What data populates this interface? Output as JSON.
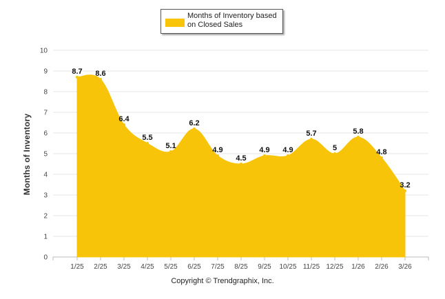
{
  "chart_data": {
    "type": "area",
    "title": "",
    "ylabel": "Months of Inventory",
    "xlabel": "",
    "ylim": [
      0,
      10
    ],
    "yticks": [
      "0",
      "1",
      "2",
      "3",
      "4",
      "5",
      "6",
      "7",
      "8",
      "9",
      "10"
    ],
    "categories": [
      "1/25",
      "2/25",
      "3/25",
      "4/25",
      "5/25",
      "6/25",
      "7/25",
      "8/25",
      "9/25",
      "10/25",
      "11/25",
      "12/25",
      "1/26",
      "2/26",
      "3/26"
    ],
    "series": [
      {
        "name": "Months of Inventory based on Closed Sales",
        "values": [
          8.7,
          8.6,
          6.4,
          5.5,
          5.1,
          6.2,
          4.9,
          4.5,
          4.9,
          4.9,
          5.7,
          5,
          5.8,
          4.8,
          3.2
        ],
        "labels": [
          "8.7",
          "8.6",
          "6.4",
          "5.5",
          "5.1",
          "6.2",
          "4.9",
          "4.5",
          "4.9",
          "4.9",
          "5.7",
          "5",
          "5.8",
          "4.8",
          "3.2"
        ]
      }
    ],
    "colors": {
      "fill": "#f8c40a",
      "grid": "#e4e4e4",
      "axis": "#bbbbbb"
    },
    "grid": true,
    "legend_position": "top-center"
  },
  "legend": {
    "label": "Months of Inventory based on Closed Sales"
  },
  "footer": {
    "copyright": "Copyright © Trendgraphix, Inc."
  }
}
